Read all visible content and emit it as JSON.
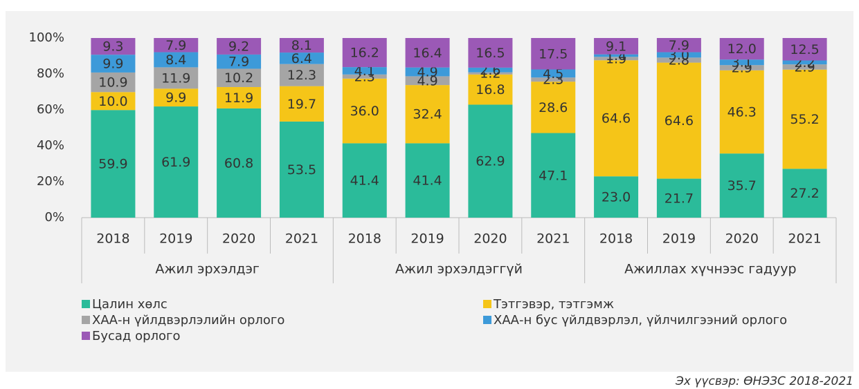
{
  "chart_data": {
    "type": "stacked_bar",
    "categories": [
      "2018",
      "2019",
      "2020",
      "2021",
      "2018",
      "2019",
      "2020",
      "2021",
      "2018",
      "2019",
      "2020",
      "2021"
    ],
    "groups": [
      "Ажил эрхэлдэг",
      "Ажил эрхэлдэггүй",
      "Ажиллах хүчнээс гадуур"
    ],
    "series": [
      {
        "name": "Цалин хөлс",
        "color": "#2bbb9a",
        "values": [
          59.9,
          61.9,
          60.8,
          53.5,
          41.4,
          41.4,
          62.9,
          47.1,
          23.0,
          21.7,
          35.7,
          27.2
        ],
        "value_labels": [
          "59.9",
          "61.9",
          "60.8",
          "53.5",
          "41.4",
          "41.4",
          "62.9",
          "47.1",
          "23.0",
          "21.7",
          "35.7",
          "27.2"
        ]
      },
      {
        "name": "Тэтгэвэр, тэтгэмж",
        "color": "#f5c518",
        "values": [
          10.0,
          9.9,
          11.9,
          19.7,
          36.0,
          32.4,
          16.8,
          28.6,
          64.6,
          64.6,
          46.3,
          55.2
        ],
        "value_labels": [
          "10.0",
          "9.9",
          "11.9",
          "19.7",
          "36.0",
          "32.4",
          "16.8",
          "28.6",
          "64.6",
          "64.6",
          "46.3",
          "55.2"
        ]
      },
      {
        "name": "ХАА-н үйлдвэрлэлийн орлого",
        "color": "#a5a5a5",
        "values": [
          10.9,
          11.9,
          10.2,
          12.3,
          2.3,
          4.9,
          1.2,
          2.3,
          1.9,
          2.8,
          2.9,
          2.9
        ],
        "value_labels": [
          "10.9",
          "11.9",
          "10.2",
          "12.3",
          "2.3",
          "4.9",
          "1.2",
          "2.3",
          "1.9",
          "2.8",
          "2.9",
          "2.9"
        ]
      },
      {
        "name": "ХАА-н бус үйлдвэрлэл, үйлчилгээний орлого",
        "color": "#3d9ad9",
        "values": [
          9.9,
          8.4,
          7.9,
          6.4,
          4.1,
          4.9,
          2.6,
          4.5,
          1.4,
          3.0,
          3.1,
          2.2
        ],
        "value_labels": [
          "9.9",
          "8.4",
          "7.9",
          "6.4",
          "4.1",
          "4.9",
          "2.6",
          "4.5",
          "1.4",
          "3.0",
          "3.1",
          "2.2"
        ]
      },
      {
        "name": "Бусад орлого",
        "color": "#9b59b6",
        "values": [
          9.3,
          7.9,
          9.2,
          8.1,
          16.2,
          16.4,
          16.5,
          17.5,
          9.1,
          7.9,
          12.0,
          12.5
        ],
        "value_labels": [
          "9.3",
          "7.9",
          "9.2",
          "8.1",
          "16.2",
          "16.4",
          "16.5",
          "17.5",
          "9.1",
          "7.9",
          "12.0",
          "12.5"
        ]
      }
    ],
    "ylim": [
      0,
      100
    ],
    "yticks": [
      {
        "value": 0,
        "label": "0%"
      },
      {
        "value": 20,
        "label": "20%"
      },
      {
        "value": 40,
        "label": "40%"
      },
      {
        "value": 60,
        "label": "60%"
      },
      {
        "value": 80,
        "label": "80%"
      },
      {
        "value": 100,
        "label": "100%"
      }
    ],
    "source": "Эх үүсвэр: ӨНЭЗС 2018-2021"
  }
}
